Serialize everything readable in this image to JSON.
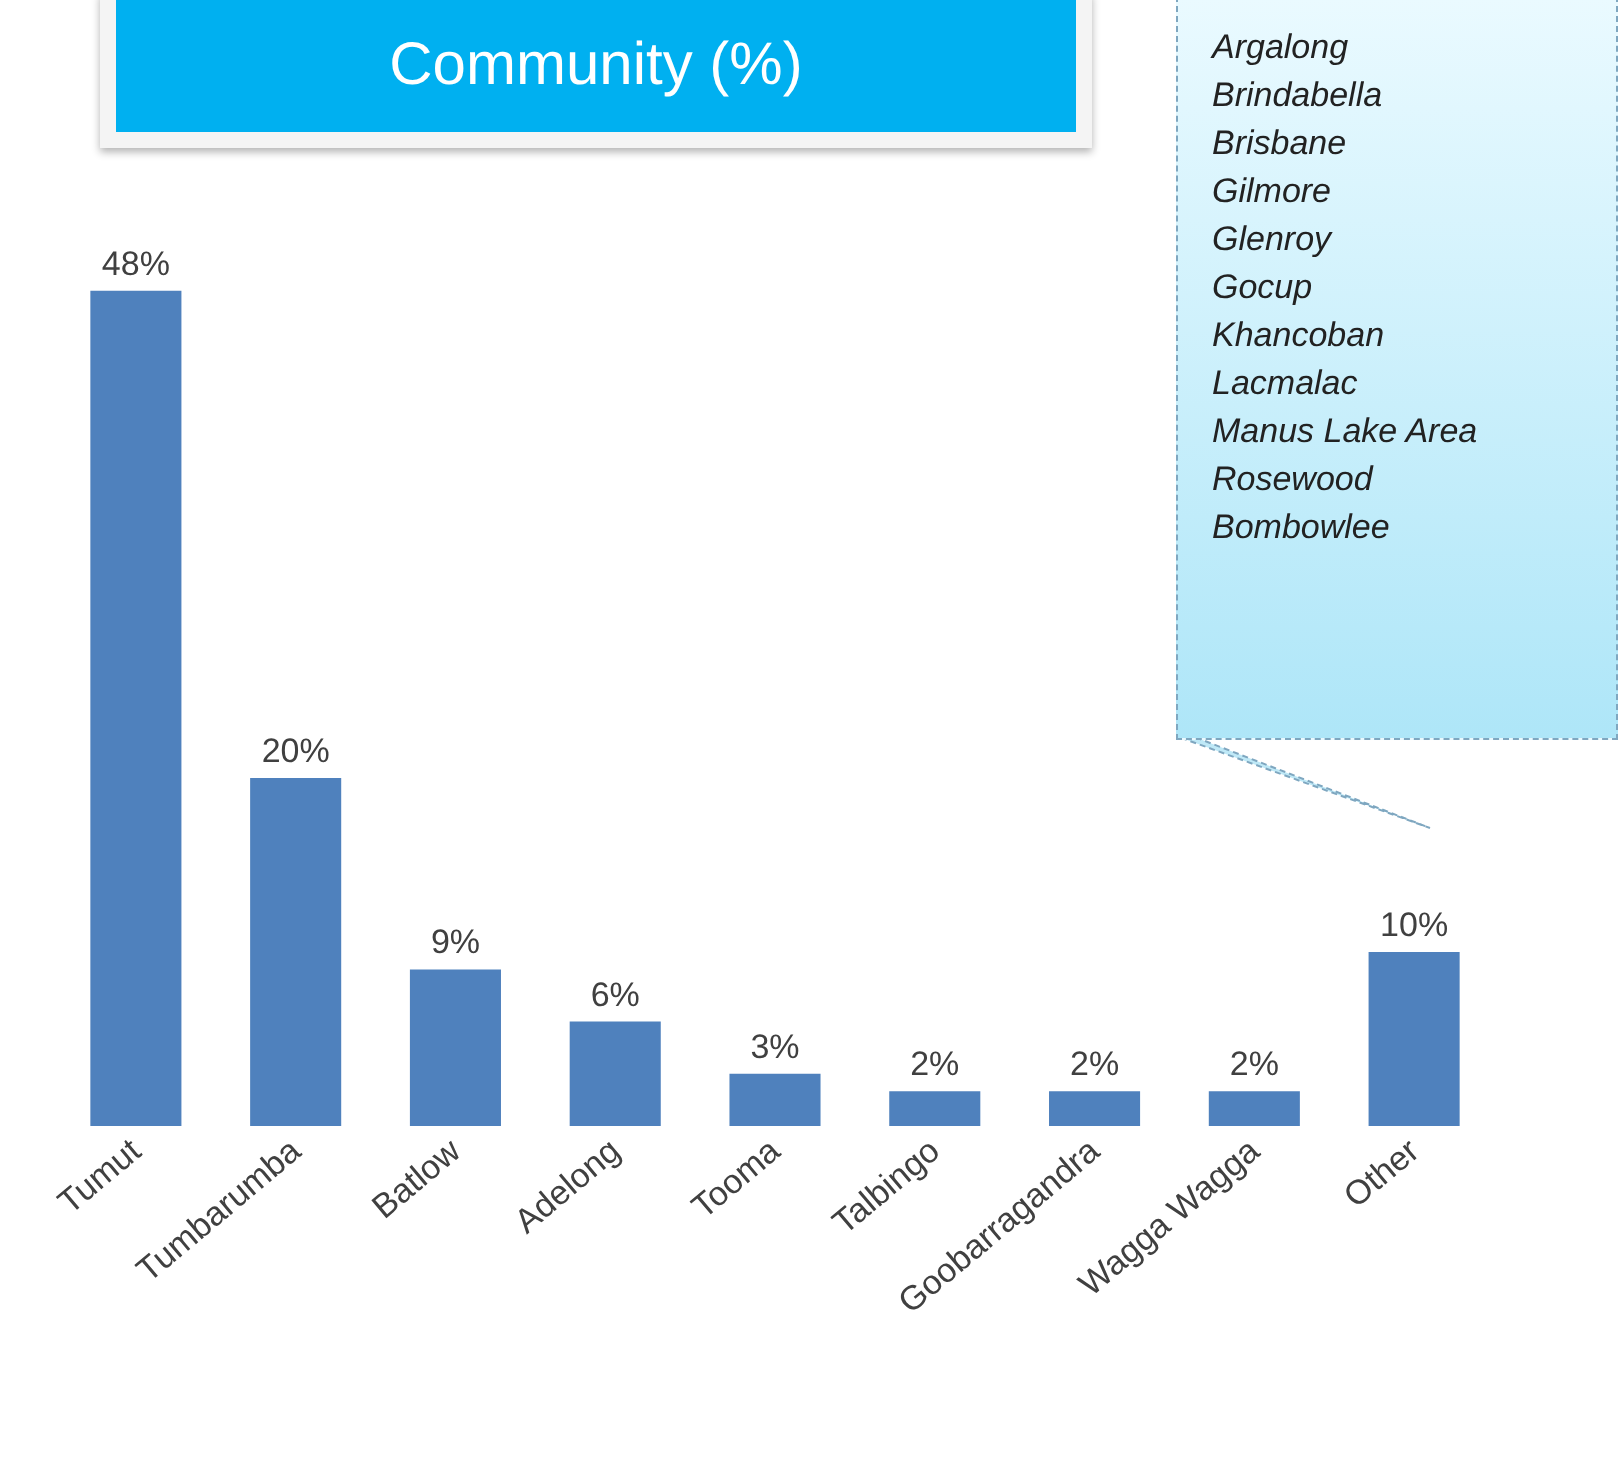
{
  "chart_data": {
    "type": "bar",
    "title": "Community (%)",
    "categories": [
      "Tumut",
      "Tumbarumba",
      "Batlow",
      "Adelong",
      "Tooma",
      "Talbingo",
      "Goobarragandra",
      "Wagga Wagga",
      "Other"
    ],
    "values": [
      48,
      20,
      9,
      6,
      3,
      2,
      2,
      2,
      10
    ],
    "value_labels": [
      "48%",
      "20%",
      "9%",
      "6%",
      "3%",
      "2%",
      "2%",
      "2%",
      "10%"
    ],
    "color": "#4f81bd",
    "grid": false,
    "annotations": [
      "Argalong",
      "Brindabella",
      "Brisbane",
      "Gilmore",
      "Glenroy",
      "Gocup",
      "Khancoban",
      "Lacmalac",
      "Manus Lake Area",
      "Rosewood",
      "Bombowlee"
    ]
  }
}
